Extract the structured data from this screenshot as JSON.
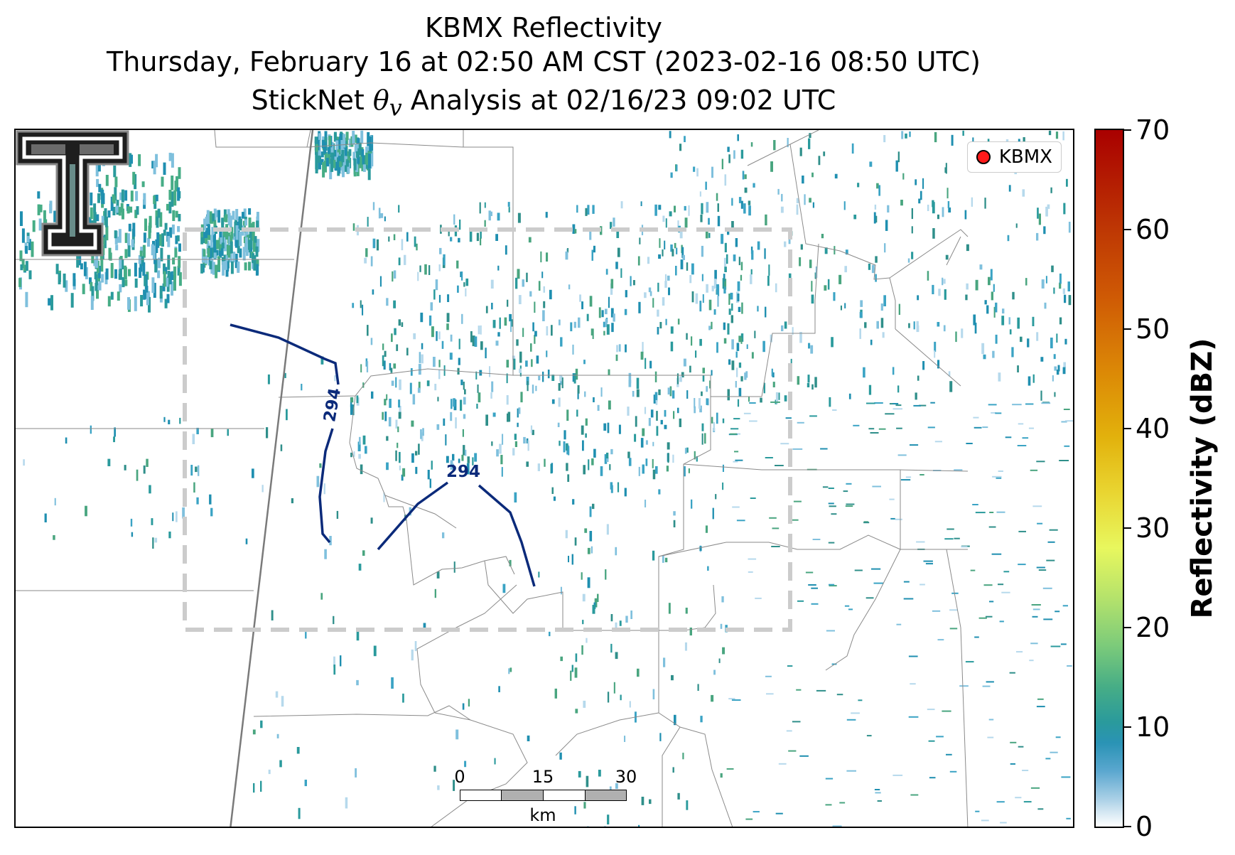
{
  "title": {
    "line1": "KBMX Reflectivity",
    "line2": "Thursday, February 16 at 02:50 AM CST (2023-02-16 08:50 UTC)",
    "line3_prefix": "StickNet ",
    "line3_symbol": "θ",
    "line3_subscript": "v",
    "line3_suffix": " Analysis at 02/16/23 09:02 UTC"
  },
  "legend": {
    "label": "KBMX",
    "marker_color": "#ff1a1a"
  },
  "contours": [
    {
      "label": "294",
      "color": "#0b2a7a"
    },
    {
      "label": "294",
      "color": "#0b2a7a"
    }
  ],
  "analysis_box": {
    "style": "dashed",
    "color": "#cccccc"
  },
  "scalebar": {
    "ticks": [
      "0",
      "15",
      "30"
    ],
    "unit": "km"
  },
  "colorbar": {
    "label": "Reflectivity (dBZ)",
    "ticks": [
      "0",
      "10",
      "20",
      "30",
      "40",
      "50",
      "60",
      "70"
    ],
    "range": [
      0,
      70
    ]
  },
  "logo": {
    "name": "texas-tech-double-t-logo"
  }
}
